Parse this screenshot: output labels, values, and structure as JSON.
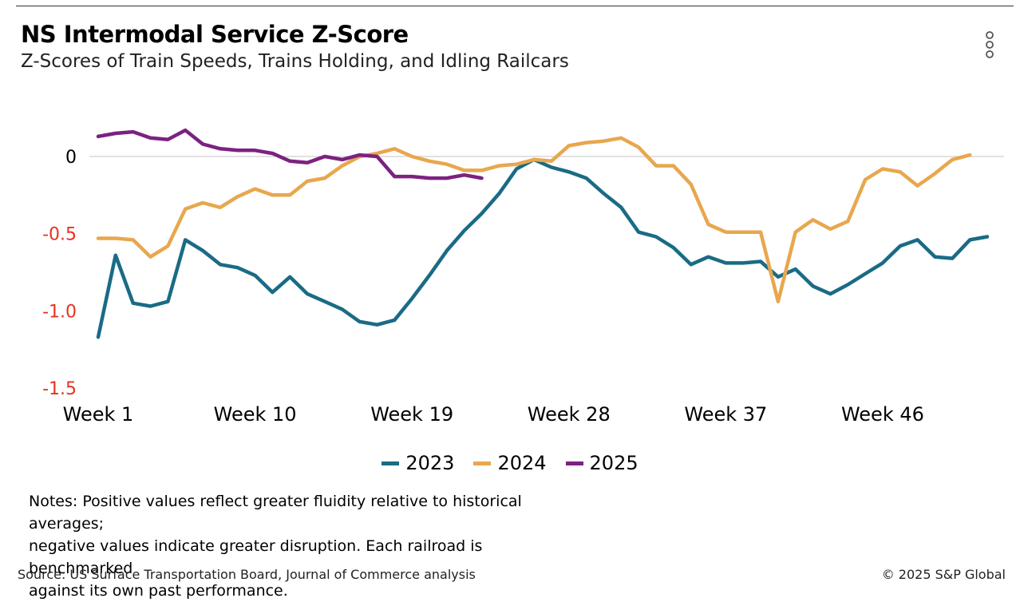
{
  "header": {
    "title": "NS Intermodal Service Z-Score",
    "subtitle": "Z-Scores of Train Speeds, Trains Holding, and Idling Railcars"
  },
  "menu_icon": "vertical-dots-icon",
  "chart_data": {
    "type": "line",
    "title": "NS Intermodal Service Z-Score",
    "subtitle": "Z-Scores of Train Speeds, Trains Holding, and Idling Railcars",
    "xlabel": "",
    "ylabel": "",
    "x_ticks": [
      {
        "week": 1,
        "label": "Week 1"
      },
      {
        "week": 10,
        "label": "Week 10"
      },
      {
        "week": 19,
        "label": "Week 19"
      },
      {
        "week": 28,
        "label": "Week 28"
      },
      {
        "week": 37,
        "label": "Week 37"
      },
      {
        "week": 46,
        "label": "Week 46"
      }
    ],
    "y_ticks": [
      {
        "value": 0,
        "label": "0",
        "color": "#000000"
      },
      {
        "value": -0.5,
        "label": "-0.5",
        "color": "#e8321e"
      },
      {
        "value": -1.0,
        "label": "-1.0",
        "color": "#e8321e"
      },
      {
        "value": -1.5,
        "label": "-1.5",
        "color": "#e8321e"
      }
    ],
    "xlim": [
      1,
      52
    ],
    "ylim": [
      -1.5,
      0.2
    ],
    "zero_line": true,
    "legend_position": "bottom-center",
    "series": [
      {
        "name": "2023",
        "color": "#1a6b85",
        "values": [
          -1.17,
          -0.64,
          -0.95,
          -0.97,
          -0.94,
          -0.54,
          -0.61,
          -0.7,
          -0.72,
          -0.77,
          -0.88,
          -0.78,
          -0.89,
          -0.94,
          -0.99,
          -1.07,
          -1.09,
          -1.06,
          -0.92,
          -0.77,
          -0.61,
          -0.48,
          -0.37,
          -0.24,
          -0.08,
          -0.02,
          -0.07,
          -0.1,
          -0.14,
          -0.24,
          -0.33,
          -0.49,
          -0.52,
          -0.59,
          -0.7,
          -0.65,
          -0.69,
          -0.69,
          -0.68,
          -0.78,
          -0.73,
          -0.84,
          -0.89,
          -0.83,
          -0.76,
          -0.69,
          -0.58,
          -0.54,
          -0.65,
          -0.66,
          -0.54,
          -0.52
        ]
      },
      {
        "name": "2024",
        "color": "#e8a74e",
        "values": [
          -0.53,
          -0.53,
          -0.54,
          -0.65,
          -0.58,
          -0.34,
          -0.3,
          -0.33,
          -0.26,
          -0.21,
          -0.25,
          -0.25,
          -0.16,
          -0.14,
          -0.06,
          0.0,
          0.02,
          0.05,
          0.0,
          -0.03,
          -0.05,
          -0.09,
          -0.09,
          -0.06,
          -0.05,
          -0.02,
          -0.03,
          0.07,
          0.09,
          0.1,
          0.12,
          0.06,
          -0.06,
          -0.06,
          -0.18,
          -0.44,
          -0.49,
          -0.49,
          -0.49,
          -0.94,
          -0.49,
          -0.41,
          -0.47,
          -0.42,
          -0.15,
          -0.08,
          -0.1,
          -0.19,
          -0.11,
          -0.02,
          0.01
        ]
      },
      {
        "name": "2025",
        "color": "#7b2281",
        "values": [
          0.13,
          0.15,
          0.16,
          0.12,
          0.11,
          0.17,
          0.08,
          0.05,
          0.04,
          0.04,
          0.02,
          -0.03,
          -0.04,
          0.0,
          -0.02,
          0.01,
          0.0,
          -0.13,
          -0.13,
          -0.14,
          -0.14,
          -0.12,
          -0.14
        ]
      }
    ]
  },
  "legend": {
    "items": [
      {
        "label": "2023",
        "color": "#1a6b85"
      },
      {
        "label": "2024",
        "color": "#e8a74e"
      },
      {
        "label": "2025",
        "color": "#7b2281"
      }
    ]
  },
  "notes": {
    "line1": "Notes: Positive values reflect greater fluidity relative to historical averages;",
    "line2": "negative values indicate greater disruption. Each railroad is benchmarked",
    "line3": "against its own past performance."
  },
  "footer": {
    "source": "Source: US Surface Transportation Board, Journal of Commerce analysis",
    "copyright": "© 2025 S&P Global"
  }
}
